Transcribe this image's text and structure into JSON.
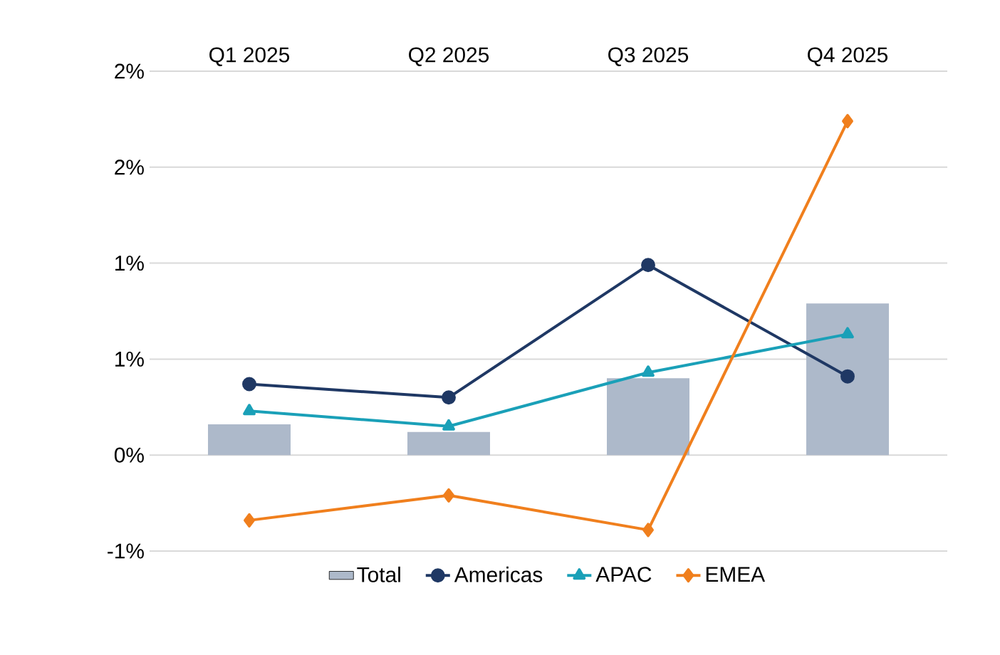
{
  "chart_data": {
    "type": "line",
    "categories": [
      "Q1 2025",
      "Q2 2025",
      "Q3 2025",
      "Q4 2025"
    ],
    "ylim": [
      -0.5,
      2.0
    ],
    "yticks": [
      {
        "value": -0.5,
        "label": "-1%"
      },
      {
        "value": 0,
        "label": "0%"
      },
      {
        "value": 0.5,
        "label": "1%"
      },
      {
        "value": 1.0,
        "label": "1%"
      },
      {
        "value": 1.5,
        "label": "2%"
      },
      {
        "value": 2.0,
        "label": "2%"
      }
    ],
    "grid": "y",
    "legend": "bottom",
    "series": [
      {
        "name": "Total",
        "type": "bar",
        "color": "#adb9ca",
        "values": [
          0.16,
          0.12,
          0.4,
          0.79
        ]
      },
      {
        "name": "Americas",
        "color": "#1f3864",
        "marker": "circle",
        "values": [
          0.37,
          0.3,
          0.99,
          0.41
        ]
      },
      {
        "name": "APAC",
        "color": "#1aa0b8",
        "marker": "triangle",
        "values": [
          0.23,
          0.15,
          0.43,
          0.63
        ]
      },
      {
        "name": "EMEA",
        "color": "#f07f1d",
        "marker": "diamond",
        "values": [
          -0.34,
          -0.21,
          -0.39,
          1.74
        ]
      }
    ]
  }
}
